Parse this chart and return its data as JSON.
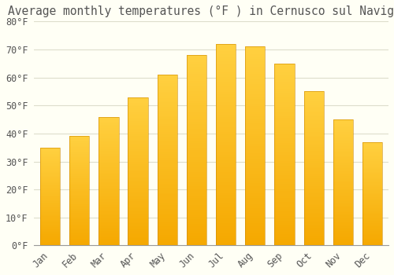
{
  "title": "Average monthly temperatures (°F ) in Cernusco sul Naviglio",
  "months": [
    "Jan",
    "Feb",
    "Mar",
    "Apr",
    "May",
    "Jun",
    "Jul",
    "Aug",
    "Sep",
    "Oct",
    "Nov",
    "Dec"
  ],
  "values": [
    35,
    39,
    46,
    53,
    61,
    68,
    72,
    71,
    65,
    55,
    45,
    37
  ],
  "bar_color_bottom": "#F5A800",
  "bar_color_top": "#FFD040",
  "bar_edge_color": "#CC8800",
  "background_color": "#FFFFF5",
  "grid_color": "#DDDDCC",
  "text_color": "#555555",
  "title_fontsize": 10.5,
  "tick_fontsize": 8.5,
  "bar_width": 0.68,
  "ylim": [
    0,
    80
  ],
  "yticks": [
    0,
    10,
    20,
    30,
    40,
    50,
    60,
    70,
    80
  ],
  "ytick_labels": [
    "0°F",
    "10°F",
    "20°F",
    "30°F",
    "40°F",
    "50°F",
    "60°F",
    "70°F",
    "80°F"
  ]
}
